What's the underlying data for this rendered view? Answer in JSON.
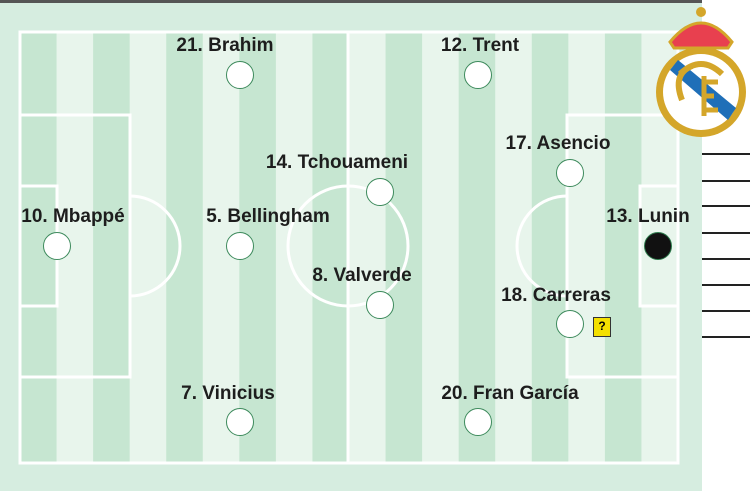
{
  "team": "Real Madrid",
  "colors": {
    "stripe_dark": "#c6e6d1",
    "stripe_light": "#e8f5ec",
    "card": "#f4e000",
    "goalkeeper": "#111111"
  },
  "players": [
    {
      "label": "21. Brahim",
      "role": "outfield"
    },
    {
      "label": "12. Trent",
      "role": "outfield"
    },
    {
      "label": "14. Tchouameni",
      "role": "outfield"
    },
    {
      "label": "17. Asencio",
      "role": "outfield"
    },
    {
      "label": "10. Mbappé",
      "role": "outfield"
    },
    {
      "label": "5. Bellingham",
      "role": "outfield"
    },
    {
      "label": "13. Lunin",
      "role": "goalkeeper"
    },
    {
      "label": "8. Valverde",
      "role": "outfield"
    },
    {
      "label": "18. Carreras",
      "role": "outfield",
      "doubt_badge": "?"
    },
    {
      "label": "7. Vinicius",
      "role": "outfield"
    },
    {
      "label": "20. Fran García",
      "role": "outfield"
    }
  ]
}
